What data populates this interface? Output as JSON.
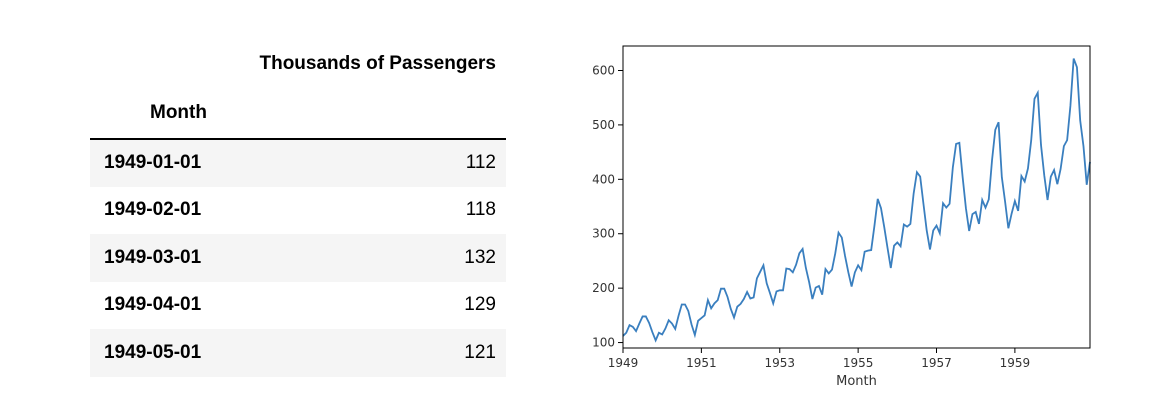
{
  "table": {
    "column_header": "Thousands of Passengers",
    "index_header": "Month",
    "rows": [
      {
        "month": "1949-01-01",
        "passengers": "112"
      },
      {
        "month": "1949-02-01",
        "passengers": "118"
      },
      {
        "month": "1949-03-01",
        "passengers": "132"
      },
      {
        "month": "1949-04-01",
        "passengers": "129"
      },
      {
        "month": "1949-05-01",
        "passengers": "121"
      }
    ]
  },
  "chart_data": {
    "type": "line",
    "xlabel": "Month",
    "ylabel": "",
    "title": "",
    "xlim": [
      "1949-01",
      "1960-12"
    ],
    "ylim": [
      90,
      645
    ],
    "x_ticks": [
      "1949",
      "1951",
      "1953",
      "1955",
      "1957",
      "1959"
    ],
    "y_ticks": [
      "100",
      "200",
      "300",
      "400",
      "500",
      "600"
    ],
    "grid": false,
    "line_color": "#3a7fbf",
    "series": [
      {
        "start": "1949-01",
        "frequency": "monthly",
        "values": [
          112,
          118,
          132,
          129,
          121,
          135,
          148,
          148,
          136,
          119,
          104,
          118,
          115,
          126,
          141,
          135,
          125,
          149,
          170,
          170,
          158,
          133,
          114,
          140,
          145,
          150,
          178,
          163,
          172,
          178,
          199,
          199,
          184,
          162,
          146,
          166,
          171,
          180,
          193,
          181,
          183,
          218,
          230,
          242,
          209,
          191,
          172,
          194,
          196,
          196,
          236,
          235,
          229,
          243,
          264,
          272,
          237,
          211,
          180,
          201,
          204,
          188,
          235,
          227,
          234,
          264,
          302,
          293,
          259,
          229,
          203,
          229,
          242,
          233,
          267,
          269,
          270,
          315,
          364,
          347,
          312,
          274,
          237,
          278,
          284,
          277,
          317,
          313,
          318,
          374,
          413,
          405,
          355,
          306,
          271,
          306,
          315,
          301,
          356,
          348,
          355,
          422,
          465,
          467,
          404,
          347,
          305,
          336,
          340,
          318,
          362,
          348,
          363,
          435,
          491,
          505,
          404,
          359,
          310,
          337,
          360,
          342,
          406,
          396,
          420,
          472,
          548,
          559,
          463,
          407,
          362,
          405,
          417,
          391,
          419,
          461,
          472,
          535,
          622,
          606,
          508,
          461,
          390,
          432
        ]
      }
    ]
  }
}
